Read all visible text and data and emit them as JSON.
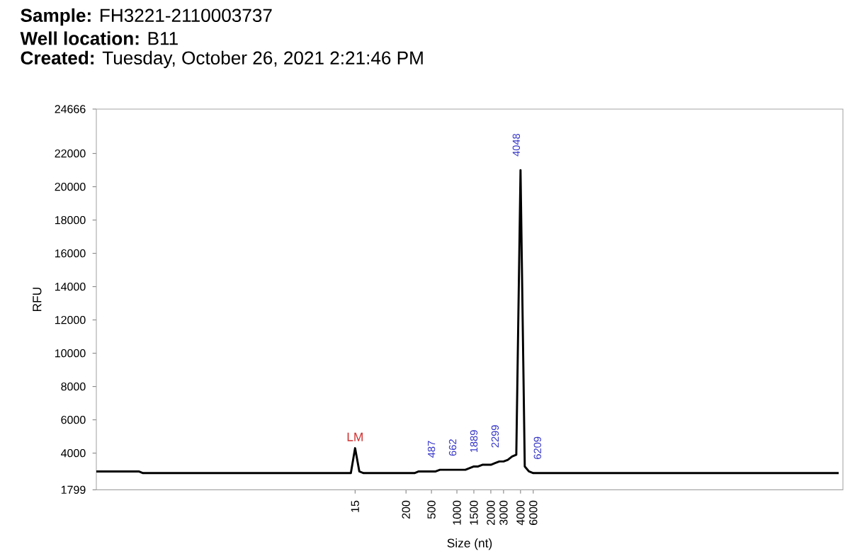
{
  "chart_data": {
    "type": "line",
    "title": "**Sample:** FH3221-2110003737",
    "subtitle": "**Well location:** B11",
    "annotations": [
      "**Created:** Tuesday, October 26, 2021 2:21:46 PM",
      {
        "text": "LM",
        "x": "15",
        "y": 4700
      },
      "487",
      "662",
      "1889",
      "2299",
      "4048",
      "6209"
    ],
    "xlabel": "Size (nt)",
    "ylabel": "RFU",
    "color": "#000000",
    "ylim": [
      1799,
      24666
    ],
    "yticks": [
      1799,
      4000,
      6000,
      8000,
      10000,
      12000,
      14000,
      16000,
      18000,
      20000,
      22000,
      24666
    ],
    "categories": [
      null,
      null,
      null,
      null,
      null,
      null,
      null,
      null,
      null,
      null,
      null,
      null,
      null,
      null,
      null,
      null,
      null,
      null,
      null,
      null,
      null,
      null,
      null,
      null,
      null,
      null,
      null,
      null,
      null,
      null,
      null,
      null,
      null,
      null,
      null,
      null,
      null,
      null,
      null,
      null,
      null,
      null,
      null,
      null,
      null,
      null,
      null,
      null,
      null,
      null,
      null,
      null,
      null,
      null,
      null,
      null,
      null,
      null,
      null,
      null,
      null,
      "15",
      null,
      null,
      null,
      null,
      null,
      null,
      null,
      null,
      null,
      null,
      null,
      "200",
      null,
      null,
      null,
      null,
      null,
      "500",
      null,
      null,
      null,
      null,
      null,
      "1000",
      null,
      null,
      null,
      "1500",
      null,
      null,
      null,
      "2000",
      null,
      null,
      "3000",
      null,
      null,
      null,
      "4000",
      null,
      null,
      "6000",
      null,
      null,
      null,
      null,
      null,
      null,
      null,
      null,
      null,
      null,
      null,
      null,
      null,
      null,
      null,
      null,
      null,
      null,
      null,
      null,
      null,
      null,
      null,
      null,
      null,
      null,
      null,
      null,
      null,
      null,
      null,
      null,
      null,
      null,
      null,
      null,
      null,
      null,
      null,
      null,
      null,
      null,
      null,
      null,
      null,
      null,
      null,
      null,
      null,
      null,
      null,
      null,
      null,
      null,
      null,
      null,
      null,
      null,
      null,
      null,
      null,
      null,
      null,
      null,
      null,
      null,
      null,
      null,
      null,
      null,
      null,
      null
    ],
    "values": [
      2900,
      2900,
      2900,
      2900,
      2900,
      2900,
      2900,
      2900,
      2900,
      2900,
      2900,
      2800,
      2800,
      2800,
      2800,
      2800,
      2800,
      2800,
      2800,
      2800,
      2800,
      2800,
      2800,
      2800,
      2800,
      2800,
      2800,
      2800,
      2800,
      2800,
      2800,
      2800,
      2800,
      2800,
      2800,
      2800,
      2800,
      2800,
      2800,
      2800,
      2800,
      2800,
      2800,
      2800,
      2800,
      2800,
      2800,
      2800,
      2800,
      2800,
      2800,
      2800,
      2800,
      2800,
      2800,
      2800,
      2800,
      2800,
      2800,
      2800,
      2800,
      4300,
      2900,
      2800,
      2800,
      2800,
      2800,
      2800,
      2800,
      2800,
      2800,
      2800,
      2800,
      2800,
      2800,
      2800,
      2900,
      2900,
      2900,
      2900,
      2900,
      3000,
      3000,
      3000,
      3000,
      3000,
      3000,
      3000,
      3100,
      3200,
      3200,
      3300,
      3300,
      3300,
      3400,
      3500,
      3500,
      3600,
      3800,
      3900,
      21000,
      3200,
      2900,
      2800,
      2800,
      2800,
      2800,
      2800,
      2800,
      2800,
      2800,
      2800,
      2800,
      2800,
      2800,
      2800,
      2800,
      2800,
      2800,
      2800,
      2800,
      2800,
      2800,
      2800,
      2800,
      2800,
      2800,
      2800,
      2800,
      2800,
      2800,
      2800,
      2800,
      2800,
      2800,
      2800,
      2800,
      2800,
      2800,
      2800,
      2800,
      2800,
      2800,
      2800,
      2800,
      2800,
      2800,
      2800,
      2800,
      2800,
      2800,
      2800,
      2800,
      2800,
      2800,
      2800,
      2800,
      2800,
      2800,
      2800,
      2800,
      2800,
      2800,
      2800,
      2800,
      2800,
      2800,
      2800,
      2800,
      2800,
      2800,
      2800,
      2800,
      2800,
      2800,
      2800
    ]
  }
}
